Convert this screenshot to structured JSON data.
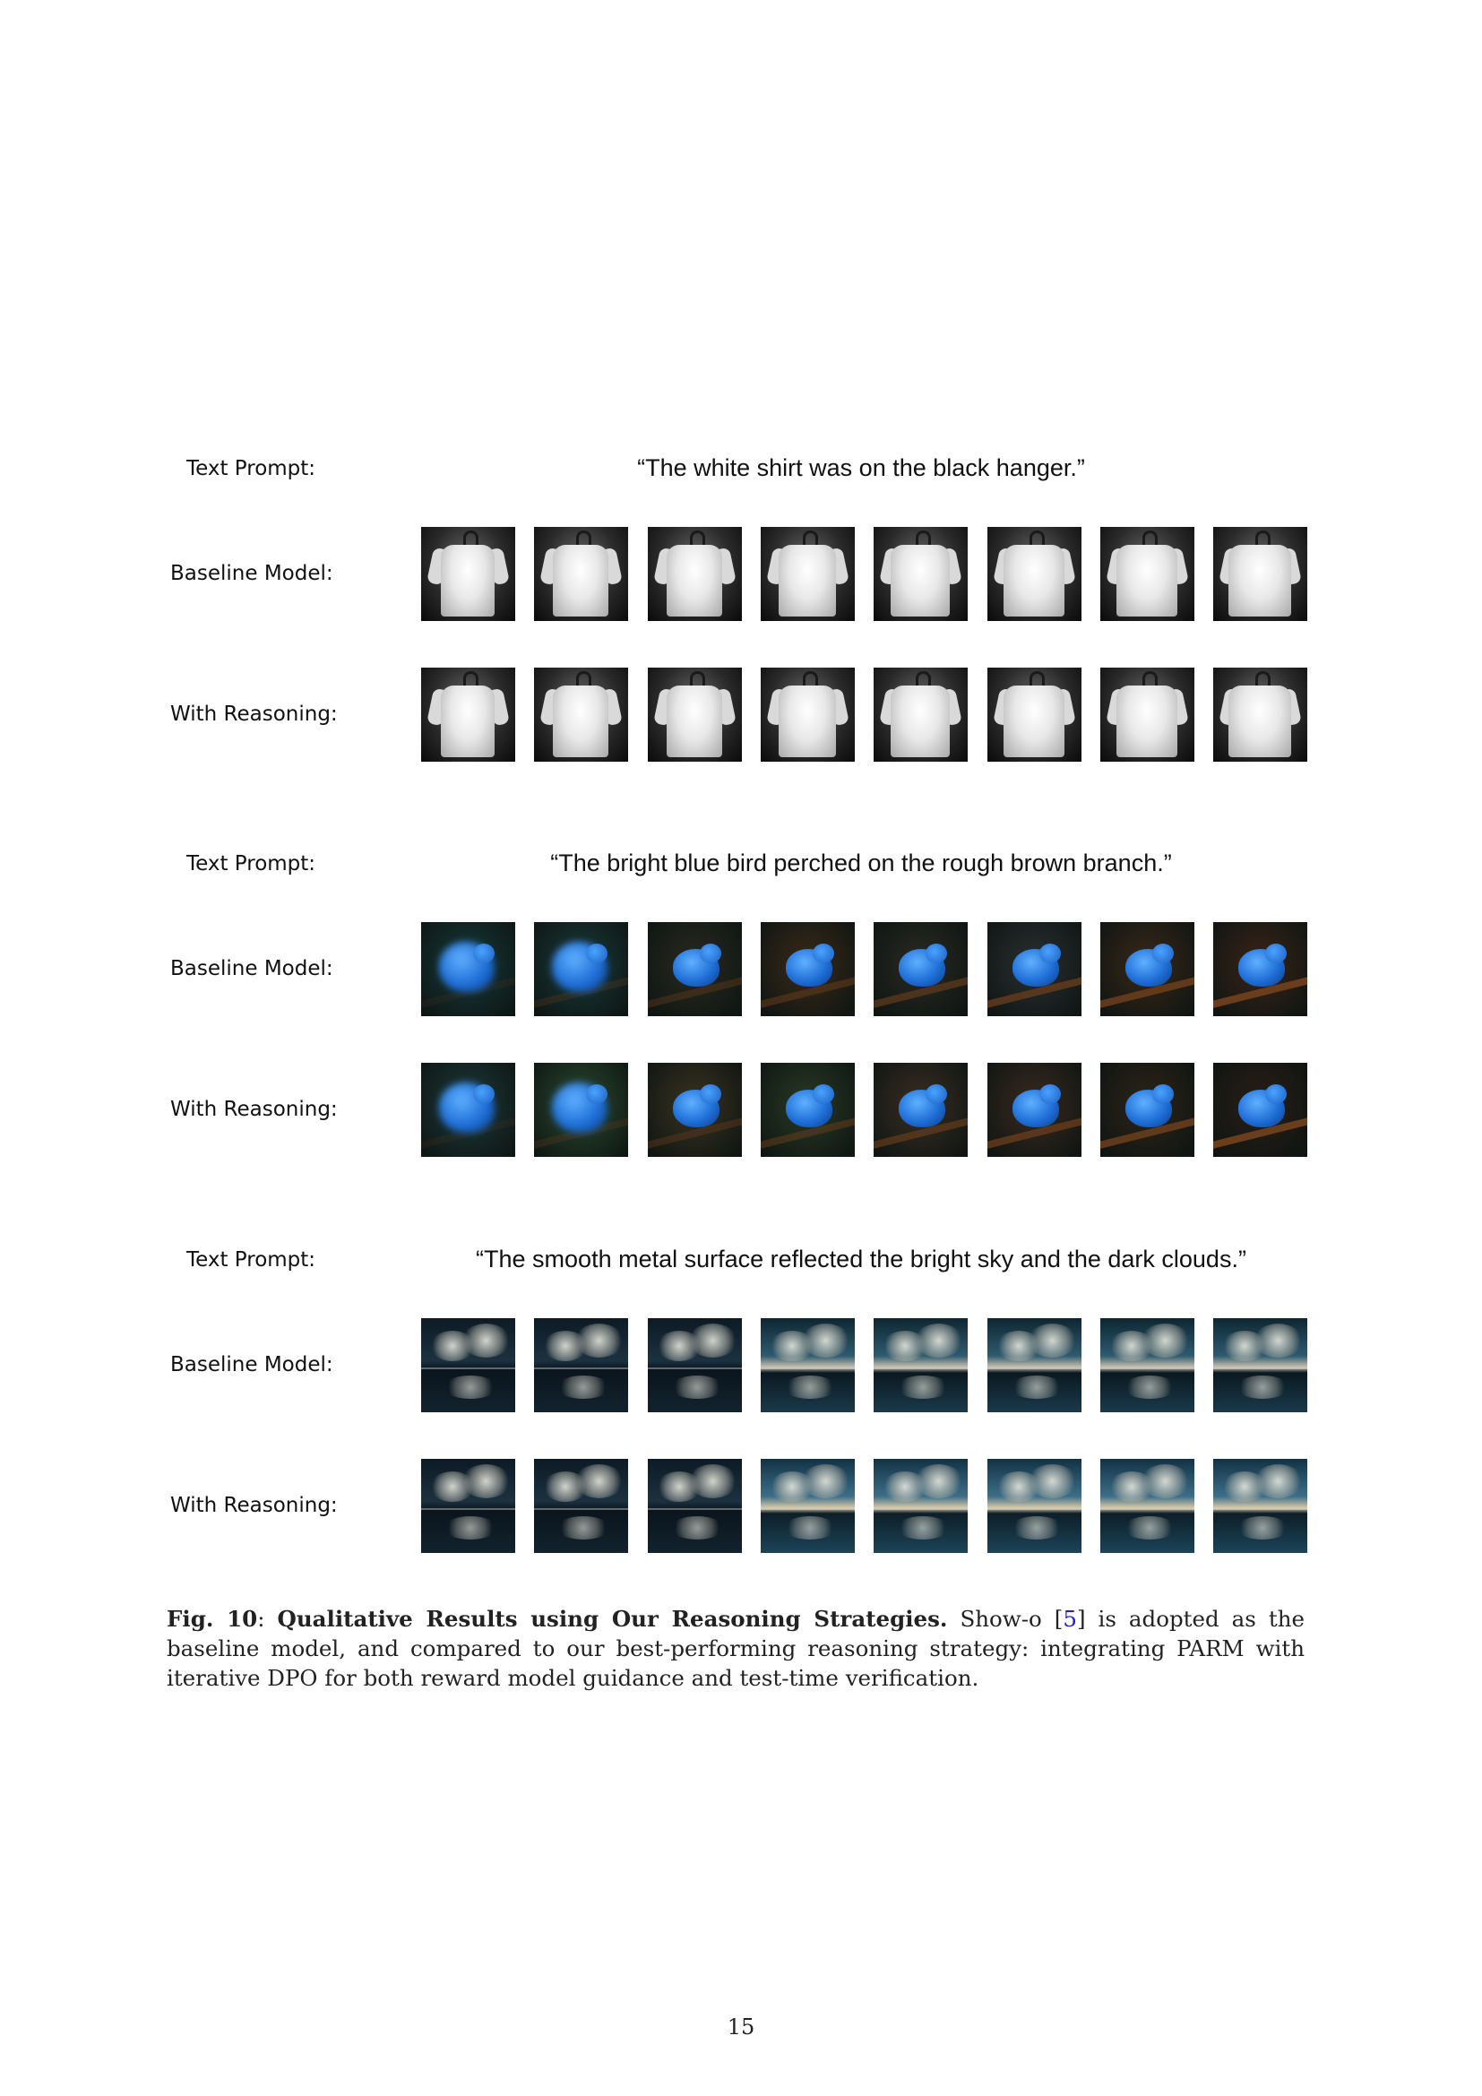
{
  "figure": {
    "label_text_prompt": "Text Prompt:",
    "label_baseline": "Baseline Model:",
    "label_reasoning": "With Reasoning:",
    "blocks": [
      {
        "prompt": "“The white shirt was on the black hanger.”",
        "subject": "white shirt on black hanger",
        "colors": [
          "#0b0b0b",
          "#f2f2f2"
        ]
      },
      {
        "prompt": "“The bright blue bird perched on the rough brown branch.”",
        "subject": "blue bird on brown branch",
        "colors": [
          "#1b2a24",
          "#2f7fe6",
          "#6a3e1c"
        ]
      },
      {
        "prompt": "“The smooth metal surface reflected the bright sky and the dark clouds.”",
        "subject": "clouds reflected on metal surface",
        "colors": [
          "#0e1a22",
          "#d8d2c0",
          "#3a6e86"
        ]
      }
    ]
  },
  "caption": {
    "fig_label": "Fig. 10",
    "separator": ":",
    "title": "Qualitative Results using Our Reasoning Strategies.",
    "text_before_ref": "Show-o [",
    "ref": "5",
    "text_after_ref": "] is adopted as the baseline model, and compared to our best-performing reasoning strategy: integrating PARM with iterative DPO for both reward model guidance and test-time verification."
  },
  "page_number": "15"
}
